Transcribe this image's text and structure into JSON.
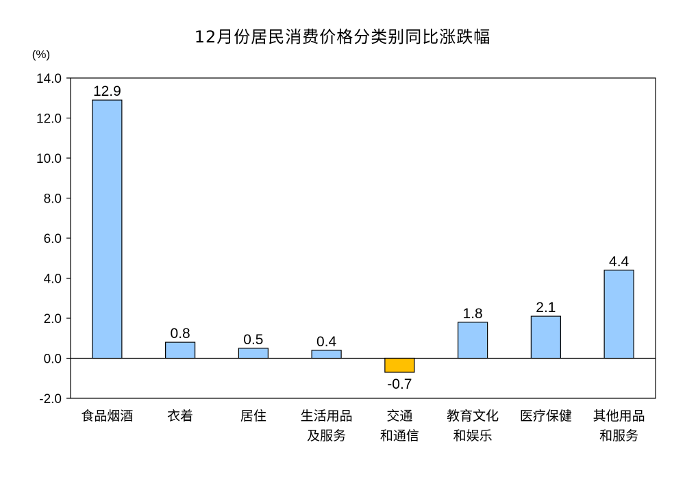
{
  "chart_data": {
    "type": "bar",
    "title": "12月份居民消费价格分类别同比涨跌幅",
    "ylabel": "(%)",
    "xlabel": "",
    "ylim": [
      -2.0,
      14.0
    ],
    "yticks": [
      "14.0",
      "12.0",
      "10.0",
      "8.0",
      "6.0",
      "4.0",
      "2.0",
      "0.0",
      "-2.0"
    ],
    "grid": false,
    "legend": "none",
    "categories": [
      [
        "食品烟酒"
      ],
      [
        "衣着"
      ],
      [
        "居住"
      ],
      [
        "生活用品",
        "及服务"
      ],
      [
        "交通",
        "和通信"
      ],
      [
        "教育文化",
        "和娱乐"
      ],
      [
        "医疗保健"
      ],
      [
        "其他用品",
        "和服务"
      ]
    ],
    "values": [
      12.9,
      0.8,
      0.5,
      0.4,
      -0.7,
      1.8,
      2.1,
      4.4
    ],
    "value_labels": [
      "12.9",
      "0.8",
      "0.5",
      "0.4",
      "-0.7",
      "1.8",
      "2.1",
      "4.4"
    ],
    "colors": {
      "positive": "#99ccff",
      "negative": "#ffc000",
      "edge": "#000000"
    }
  }
}
